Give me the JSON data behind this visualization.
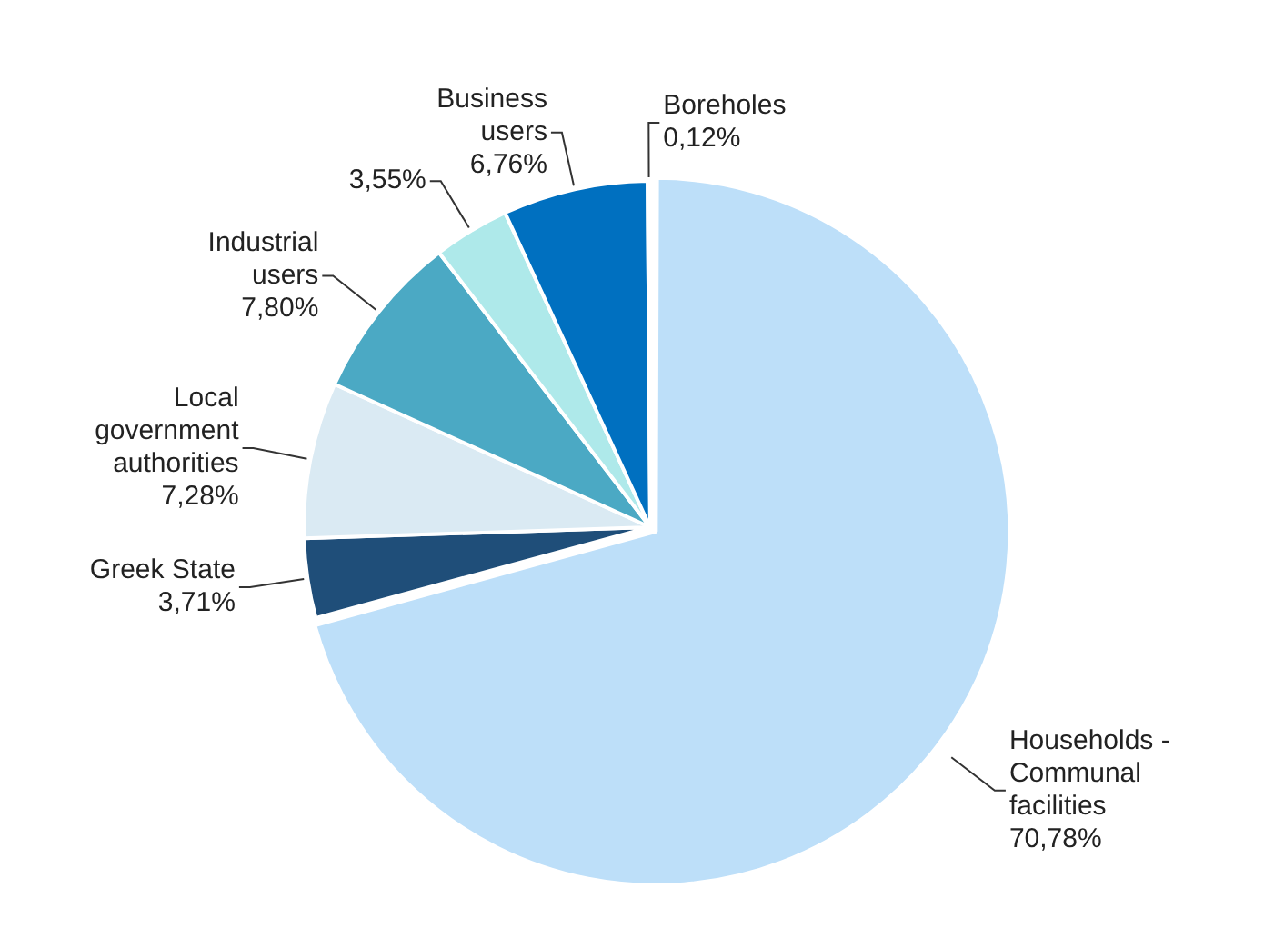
{
  "chart_data": {
    "type": "pie",
    "categories": [
      "Households - Communal facilities",
      "Greek State",
      "Local government authorities",
      "Industrial users",
      null,
      "Business users",
      "Boreholes"
    ],
    "values": [
      70.78,
      3.71,
      7.28,
      7.8,
      3.55,
      6.76,
      0.12
    ],
    "value_labels": [
      "70,78%",
      "3,71%",
      "7,28%",
      "7,80%",
      "3,55%",
      "6,76%",
      "0,12%"
    ],
    "colors": [
      "#bddff9",
      "#1f4e79",
      "#daeaf3",
      "#4ba9c4",
      "#aee9ea",
      "#0070c0",
      "#1f3864"
    ],
    "legend": false
  }
}
